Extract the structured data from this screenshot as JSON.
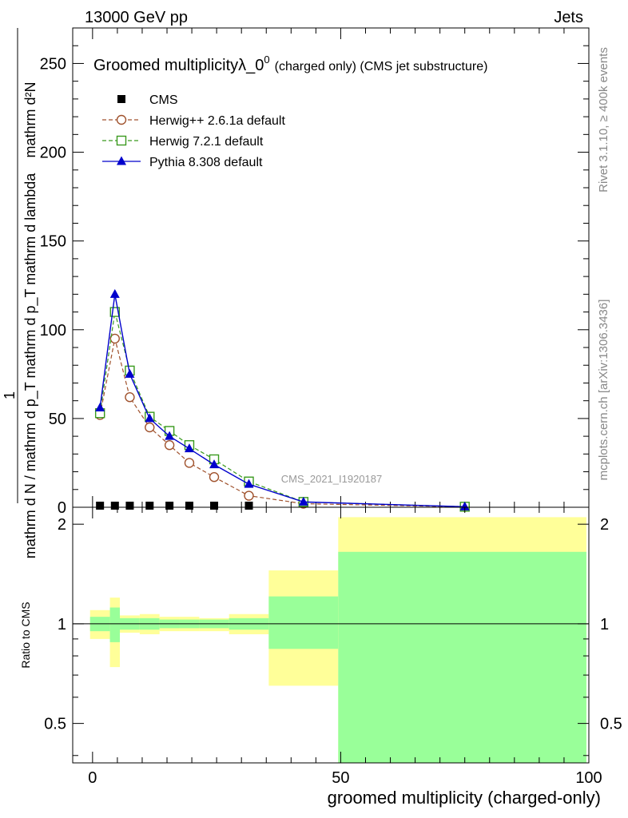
{
  "header": {
    "energy_label": "13000 GeV pp",
    "category_label": "Jets"
  },
  "side_labels": {
    "rivet": "Rivet 3.1.10, ≥ 400k events",
    "mcplots": "mcplots.cern.ch [arXiv:1306.3436]"
  },
  "watermark": "CMS_2021_I1920187",
  "colors": {
    "herwig_pp": "#a0522d",
    "herwig_7": "#3a9a1e",
    "pythia": "#0000cc",
    "cms": "#000000",
    "band_inner": "#99ff99",
    "band_outer": "#ffff99"
  },
  "chart_data": [
    {
      "type": "line",
      "title_main": "Groomed multiplicityλ_0",
      "title_sup": "0",
      "title_tail": "(charged only) (CMS jet substructure)",
      "xlabel": "",
      "ylabel_numerator": "mathrm d²N",
      "ylabel_denominator": "mathrm d N / mathrm d p_T mathrm d p_T mathrm d lambda",
      "ylabel_one": "1",
      "xlim": [
        -4,
        100
      ],
      "ylim": [
        0,
        270
      ],
      "yticks": [
        0,
        50,
        100,
        150,
        200,
        250
      ],
      "legend_position": "top-left",
      "legend": [
        {
          "key": "cms",
          "label": "CMS"
        },
        {
          "key": "herwig_pp",
          "label": "Herwig++ 2.6.1a default"
        },
        {
          "key": "herwig_7",
          "label": "Herwig 7.2.1 default"
        },
        {
          "key": "pythia",
          "label": "Pythia 8.308 default"
        }
      ],
      "series": [
        {
          "name": "CMS",
          "x": [
            1.5,
            4.5,
            7.5,
            11.5,
            15.5,
            19.5,
            24.5,
            31.5,
            42.5,
            75
          ],
          "y": [
            0,
            0,
            0,
            0,
            0,
            0,
            0,
            0,
            0,
            0
          ]
        },
        {
          "name": "Herwig++ 2.6.1a default",
          "x": [
            1.5,
            4.5,
            7.5,
            11.5,
            15.5,
            19.5,
            24.5,
            31.5,
            42.5,
            75
          ],
          "y": [
            52,
            95,
            62,
            45,
            35,
            25,
            17,
            6.5,
            2,
            0.2
          ]
        },
        {
          "name": "Herwig 7.2.1 default",
          "x": [
            1.5,
            4.5,
            7.5,
            11.5,
            15.5,
            19.5,
            24.5,
            31.5,
            42.5,
            75
          ],
          "y": [
            53,
            110,
            77,
            51,
            43,
            35,
            27,
            14.5,
            3,
            0.3
          ]
        },
        {
          "name": "Pythia 8.308 default",
          "x": [
            1.5,
            4.5,
            7.5,
            11.5,
            15.5,
            19.5,
            24.5,
            31.5,
            42.5,
            75
          ],
          "y": [
            56,
            120,
            75,
            50,
            40,
            33,
            24,
            13,
            3,
            0.3
          ]
        }
      ]
    },
    {
      "type": "area",
      "xlabel": "groomed multiplicity (charged-only)",
      "ylabel": "Ratio to CMS",
      "xlim": [
        -4,
        100
      ],
      "ylim": [
        0.38,
        2.25
      ],
      "xticks": [
        0,
        50,
        100
      ],
      "yticks": [
        0.5,
        1,
        2
      ],
      "reference_line": 1,
      "bands": [
        {
          "x0": -0.5,
          "x1": 3.5,
          "inner": [
            0.95,
            1.05
          ],
          "outer": [
            0.9,
            1.1
          ]
        },
        {
          "x0": 3.5,
          "x1": 5.5,
          "inner": [
            0.88,
            1.12
          ],
          "outer": [
            0.74,
            1.2
          ]
        },
        {
          "x0": 5.5,
          "x1": 9.5,
          "inner": [
            0.96,
            1.04
          ],
          "outer": [
            0.94,
            1.06
          ]
        },
        {
          "x0": 9.5,
          "x1": 13.5,
          "inner": [
            0.96,
            1.04
          ],
          "outer": [
            0.93,
            1.07
          ]
        },
        {
          "x0": 13.5,
          "x1": 17.5,
          "inner": [
            0.97,
            1.03
          ],
          "outer": [
            0.95,
            1.05
          ]
        },
        {
          "x0": 17.5,
          "x1": 21.5,
          "inner": [
            0.97,
            1.03
          ],
          "outer": [
            0.95,
            1.05
          ]
        },
        {
          "x0": 21.5,
          "x1": 27.5,
          "inner": [
            0.97,
            1.03
          ],
          "outer": [
            0.95,
            1.04
          ]
        },
        {
          "x0": 27.5,
          "x1": 35.5,
          "inner": [
            0.96,
            1.04
          ],
          "outer": [
            0.93,
            1.07
          ]
        },
        {
          "x0": 35.5,
          "x1": 49.5,
          "inner": [
            0.84,
            1.21
          ],
          "outer": [
            0.65,
            1.45
          ]
        },
        {
          "x0": 49.5,
          "x1": 99.5,
          "inner": [
            0.38,
            1.65
          ],
          "outer": [
            0.38,
            2.1
          ]
        }
      ]
    }
  ]
}
